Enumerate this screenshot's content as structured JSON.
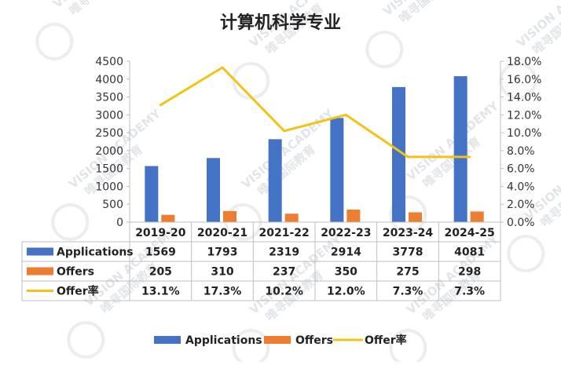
{
  "chart_data": {
    "type": "bar",
    "title": "计算机科学专业",
    "categories": [
      "2019-20",
      "2020-21",
      "2021-22",
      "2022-23",
      "2023-24",
      "2024-25"
    ],
    "series": [
      {
        "name": "Applications",
        "type": "bar",
        "axis": "left",
        "color": "#4472C4",
        "values": [
          1569,
          1793,
          2319,
          2914,
          3778,
          4081
        ]
      },
      {
        "name": "Offers",
        "type": "bar",
        "axis": "left",
        "color": "#ED7D31",
        "values": [
          205,
          310,
          237,
          350,
          275,
          298
        ]
      },
      {
        "name": "Offer率",
        "type": "line",
        "axis": "right",
        "color": "#F2C314",
        "values": [
          13.1,
          17.3,
          10.2,
          12.0,
          7.3,
          7.3
        ]
      }
    ],
    "table_values": {
      "Applications": [
        "1569",
        "1793",
        "2319",
        "2914",
        "3778",
        "4081"
      ],
      "Offers": [
        "205",
        "310",
        "237",
        "350",
        "275",
        "298"
      ],
      "Offer率": [
        "13.1%",
        "17.3%",
        "10.2%",
        "12.0%",
        "7.3%",
        "7.3%"
      ]
    },
    "y_left": {
      "min": 0,
      "max": 4500,
      "step": 500,
      "ticks": [
        "0",
        "500",
        "1000",
        "1500",
        "2000",
        "2500",
        "3000",
        "3500",
        "4000",
        "4500"
      ]
    },
    "y_right": {
      "min": 0,
      "max": 18,
      "step": 2,
      "ticks": [
        "0.0%",
        "2.0%",
        "4.0%",
        "6.0%",
        "8.0%",
        "10.0%",
        "12.0%",
        "14.0%",
        "16.0%",
        "18.0%"
      ]
    },
    "grid": false,
    "legend": "bottom",
    "data_table": true
  },
  "watermark": {
    "text": "VISION ACADEMY",
    "subtext": "唯寻国际教育"
  }
}
